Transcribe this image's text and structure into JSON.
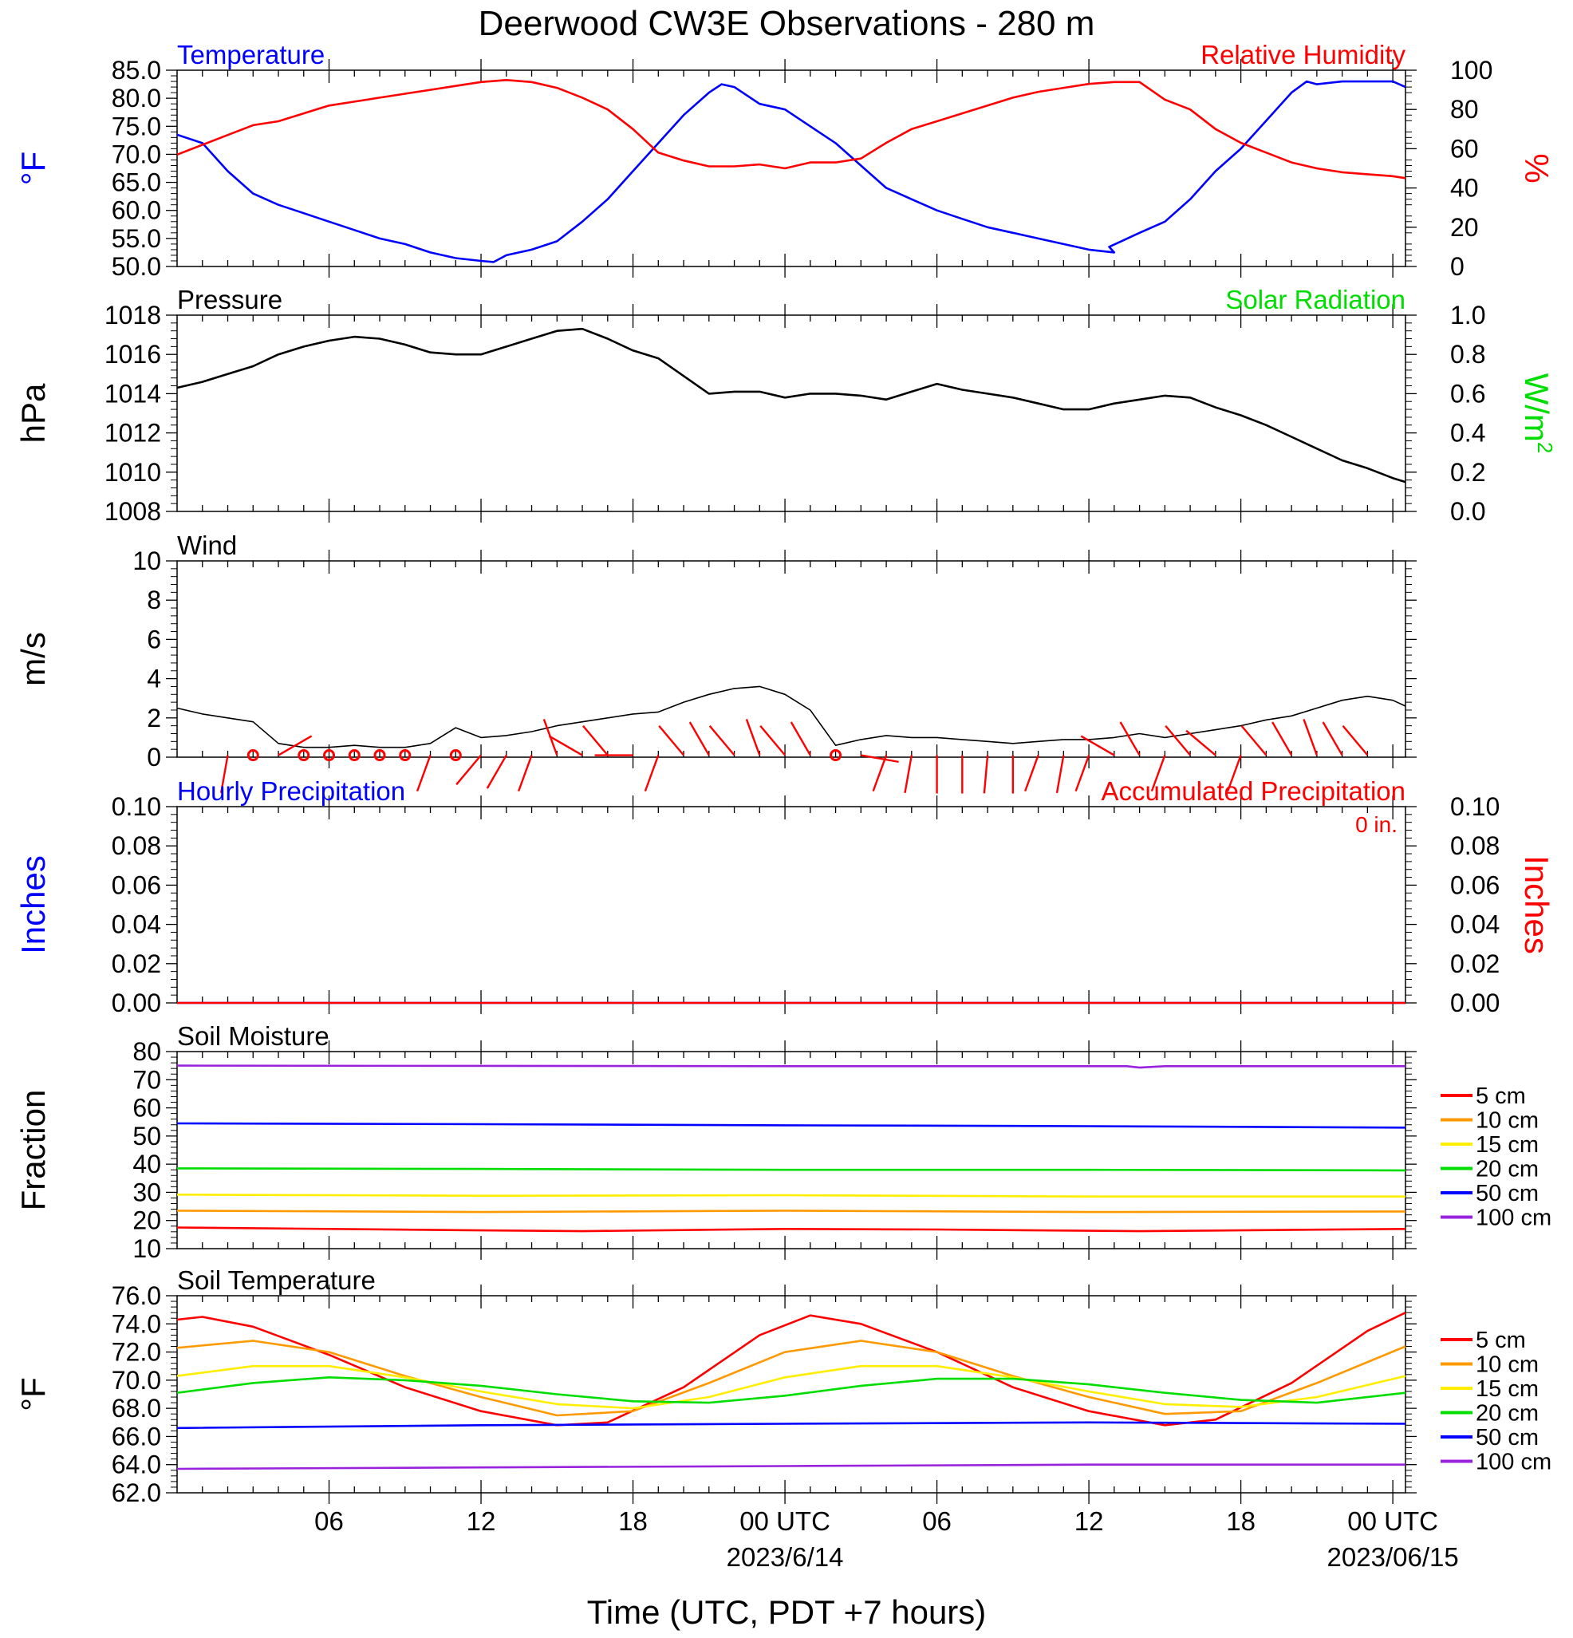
{
  "title": "Deerwood CW3E Observations - 280 m",
  "xlabel": "Time (UTC, PDT +7 hours)",
  "x_axis": {
    "range_hours": [
      0,
      48.5
    ],
    "ticks": [
      {
        "hour": 6,
        "label": "06",
        "sub": ""
      },
      {
        "hour": 12,
        "label": "12",
        "sub": ""
      },
      {
        "hour": 18,
        "label": "18",
        "sub": ""
      },
      {
        "hour": 24,
        "label": "00 UTC",
        "sub": "2023/6/14"
      },
      {
        "hour": 30,
        "label": "06",
        "sub": ""
      },
      {
        "hour": 36,
        "label": "12",
        "sub": ""
      },
      {
        "hour": 42,
        "label": "18",
        "sub": ""
      },
      {
        "hour": 48,
        "label": "00 UTC",
        "sub": "2023/06/15"
      }
    ]
  },
  "colors": {
    "blue": "#0000ff",
    "red": "#ff0000",
    "green": "#00dd00",
    "black": "#000000",
    "orange": "#ff9900",
    "yellow": "#ffee00",
    "purple": "#9922dd"
  },
  "chart_data": [
    {
      "id": "temp_rh",
      "type": "line",
      "left_title": "Temperature",
      "right_title": "Relative Humidity",
      "ylabel": "°F",
      "ylabel_right": "%",
      "ylim": [
        50,
        85
      ],
      "yticks": [
        "50.0",
        "55.0",
        "60.0",
        "65.0",
        "70.0",
        "75.0",
        "80.0",
        "85.0"
      ],
      "ylim_right": [
        0,
        100
      ],
      "yticks_right": [
        "0",
        "20",
        "40",
        "60",
        "80",
        "100"
      ],
      "series": [
        {
          "name": "Temperature",
          "color": "#0000ff",
          "axis": "left",
          "x": [
            0,
            1,
            2,
            3,
            4,
            5,
            6,
            7,
            8,
            9,
            10,
            11,
            12,
            12.5,
            13,
            14,
            15,
            16,
            17,
            18,
            19,
            20,
            21,
            21.5,
            22,
            23,
            24,
            25,
            26,
            27,
            28,
            29,
            30,
            31,
            32,
            33,
            34,
            35,
            36,
            37,
            36.8,
            38,
            39,
            40,
            41,
            42,
            43,
            44,
            44.6,
            45,
            46,
            47,
            48,
            48.5
          ],
          "y": [
            73.5,
            72,
            67,
            63,
            61,
            59.5,
            58,
            56.5,
            55,
            54,
            52.5,
            51.5,
            51,
            50.8,
            52,
            53,
            54.5,
            58,
            62,
            67,
            72,
            77,
            81,
            82.5,
            82,
            79,
            78,
            75,
            72,
            68,
            64,
            62,
            60,
            58.5,
            57,
            56,
            55,
            54,
            53,
            52.5,
            53.5,
            56,
            58,
            62,
            67,
            71,
            76,
            81,
            83,
            82.5,
            83,
            83,
            83,
            82
          ]
        },
        {
          "name": "Relative Humidity",
          "color": "#ff0000",
          "axis": "right",
          "x": [
            0,
            1,
            2,
            3,
            4,
            5,
            6,
            7,
            8,
            9,
            10,
            11,
            12,
            13,
            14,
            15,
            16,
            17,
            18,
            19,
            20,
            21,
            22,
            23,
            24,
            25,
            26,
            27,
            28,
            29,
            30,
            31,
            32,
            33,
            34,
            35,
            36,
            37,
            38,
            39,
            40,
            41,
            42,
            43,
            44,
            45,
            46,
            47,
            48,
            48.5
          ],
          "y": [
            57,
            62,
            67,
            72,
            74,
            78,
            82,
            84,
            86,
            88,
            90,
            92,
            94,
            95,
            94,
            91,
            86,
            80,
            70,
            58,
            54,
            51,
            51,
            52,
            50,
            53,
            53,
            55,
            63,
            70,
            74,
            78,
            82,
            86,
            89,
            91,
            93,
            94,
            94,
            85,
            80,
            70,
            63,
            58,
            53,
            50,
            48,
            47,
            46,
            45
          ]
        }
      ]
    },
    {
      "id": "pressure",
      "type": "line",
      "left_title": "Pressure",
      "right_title": "Solar Radiation",
      "ylabel": "hPa",
      "ylabel_right": "W/m",
      "ylabel_right_sup": "2",
      "ylim": [
        1008,
        1018
      ],
      "yticks": [
        "1008",
        "1010",
        "1012",
        "1014",
        "1016",
        "1018"
      ],
      "ylim_right": [
        0,
        1
      ],
      "yticks_right": [
        "0.0",
        "0.2",
        "0.4",
        "0.6",
        "0.8",
        "1.0"
      ],
      "series": [
        {
          "name": "Pressure",
          "color": "#000000",
          "axis": "left",
          "x": [
            0,
            1,
            2,
            3,
            4,
            5,
            6,
            7,
            8,
            9,
            10,
            11,
            12,
            13,
            14,
            15,
            16,
            17,
            18,
            19,
            20,
            21,
            22,
            23,
            24,
            25,
            26,
            27,
            28,
            29,
            30,
            31,
            32,
            33,
            34,
            35,
            36,
            37,
            38,
            39,
            40,
            41,
            42,
            43,
            44,
            45,
            46,
            47,
            48,
            48.5
          ],
          "y": [
            1014.3,
            1014.6,
            1015.0,
            1015.4,
            1016.0,
            1016.4,
            1016.7,
            1016.9,
            1016.8,
            1016.5,
            1016.1,
            1016.0,
            1016.0,
            1016.4,
            1016.8,
            1017.2,
            1017.3,
            1016.8,
            1016.2,
            1015.8,
            1014.9,
            1014.0,
            1014.1,
            1014.1,
            1013.8,
            1014.0,
            1014.0,
            1013.9,
            1013.7,
            1014.1,
            1014.5,
            1014.2,
            1014.0,
            1013.8,
            1013.5,
            1013.2,
            1013.2,
            1013.5,
            1013.7,
            1013.9,
            1013.8,
            1013.3,
            1012.9,
            1012.4,
            1011.8,
            1011.2,
            1010.6,
            1010.2,
            1009.7,
            1009.5
          ]
        }
      ]
    },
    {
      "id": "wind",
      "type": "line",
      "left_title": "Wind",
      "ylabel": "m/s",
      "ylim": [
        0,
        10
      ],
      "yticks": [
        "0",
        "2",
        "4",
        "6",
        "8",
        "10"
      ],
      "series": [
        {
          "name": "Wind",
          "color": "#000000",
          "axis": "left",
          "x": [
            0,
            1,
            2,
            3,
            4,
            5,
            6,
            7,
            8,
            9,
            10,
            11,
            12,
            13,
            14,
            15,
            16,
            17,
            18,
            19,
            20,
            21,
            22,
            23,
            24,
            25,
            26,
            27,
            28,
            29,
            30,
            31,
            32,
            33,
            34,
            35,
            36,
            37,
            38,
            39,
            40,
            41,
            42,
            43,
            44,
            45,
            46,
            47,
            48,
            48.5
          ],
          "y": [
            2.5,
            2.2,
            2.0,
            1.8,
            0.7,
            0.5,
            0.5,
            0.6,
            0.5,
            0.5,
            0.7,
            1.5,
            1.0,
            1.1,
            1.3,
            1.6,
            1.8,
            2.0,
            2.2,
            2.3,
            2.8,
            3.2,
            3.5,
            3.6,
            3.2,
            2.4,
            0.6,
            0.9,
            1.1,
            1.0,
            1.0,
            0.9,
            0.8,
            0.7,
            0.8,
            0.9,
            0.9,
            1.0,
            1.2,
            1.0,
            1.2,
            1.4,
            1.6,
            1.9,
            2.1,
            2.5,
            2.9,
            3.1,
            2.9,
            2.6
          ]
        }
      ],
      "calm_hours": [
        3,
        5,
        6,
        7,
        8,
        9,
        11,
        26
      ],
      "wind_barbs": [
        {
          "hour": 2,
          "dir": 190
        },
        {
          "hour": 4,
          "dir": 60
        },
        {
          "hour": 10,
          "dir": 200
        },
        {
          "hour": 12,
          "dir": 220
        },
        {
          "hour": 13,
          "dir": 210
        },
        {
          "hour": 14,
          "dir": 200
        },
        {
          "hour": 15,
          "dir": 340
        },
        {
          "hour": 16,
          "dir": 300
        },
        {
          "hour": 17,
          "dir": 320
        },
        {
          "hour": 18,
          "dir": 270
        },
        {
          "hour": 19,
          "dir": 200
        },
        {
          "hour": 20,
          "dir": 320
        },
        {
          "hour": 21,
          "dir": 330
        },
        {
          "hour": 22,
          "dir": 320
        },
        {
          "hour": 23,
          "dir": 340
        },
        {
          "hour": 24,
          "dir": 320
        },
        {
          "hour": 25,
          "dir": 330
        },
        {
          "hour": 27,
          "dir": 100
        },
        {
          "hour": 28,
          "dir": 200
        },
        {
          "hour": 29,
          "dir": 190
        },
        {
          "hour": 30,
          "dir": 180
        },
        {
          "hour": 31,
          "dir": 180
        },
        {
          "hour": 32,
          "dir": 185
        },
        {
          "hour": 33,
          "dir": 180
        },
        {
          "hour": 34,
          "dir": 200
        },
        {
          "hour": 35,
          "dir": 190
        },
        {
          "hour": 36,
          "dir": 200
        },
        {
          "hour": 37,
          "dir": 300
        },
        {
          "hour": 38,
          "dir": 330
        },
        {
          "hour": 39,
          "dir": 200
        },
        {
          "hour": 40,
          "dir": 320
        },
        {
          "hour": 41,
          "dir": 310
        },
        {
          "hour": 42,
          "dir": 200
        },
        {
          "hour": 43,
          "dir": 320
        },
        {
          "hour": 44,
          "dir": 330
        },
        {
          "hour": 45,
          "dir": 340
        },
        {
          "hour": 46,
          "dir": 330
        },
        {
          "hour": 47,
          "dir": 320
        }
      ]
    },
    {
      "id": "precip",
      "type": "line",
      "left_title": "Hourly Precipitation",
      "right_title": "Accumulated Precipitation",
      "annotation": "0 in.",
      "ylabel": "Inches",
      "ylabel_right": "Inches",
      "ylim": [
        0,
        0.1
      ],
      "yticks": [
        "0.00",
        "0.02",
        "0.04",
        "0.06",
        "0.08",
        "0.10"
      ],
      "ylim_right": [
        0,
        0.1
      ],
      "yticks_right": [
        "0.00",
        "0.02",
        "0.04",
        "0.06",
        "0.08",
        "0.10"
      ],
      "series": [
        {
          "name": "Hourly Precipitation",
          "color": "#0000ff",
          "axis": "left",
          "x": [
            0,
            48.5
          ],
          "y": [
            0,
            0
          ]
        },
        {
          "name": "Accumulated Precipitation",
          "color": "#ff0000",
          "axis": "right",
          "x": [
            0,
            48.5
          ],
          "y": [
            0,
            0
          ]
        }
      ]
    },
    {
      "id": "soil_moisture",
      "type": "line",
      "left_title": "Soil Moisture",
      "ylabel": "Fraction",
      "ylim": [
        10,
        80
      ],
      "yticks": [
        "10",
        "20",
        "30",
        "40",
        "50",
        "60",
        "70",
        "80"
      ],
      "series": [
        {
          "name": "5 cm",
          "color": "#ff0000",
          "x": [
            0,
            12,
            16,
            24,
            30,
            38,
            48.5
          ],
          "y": [
            17.5,
            16.5,
            16.2,
            17.0,
            16.8,
            16.2,
            17.0
          ]
        },
        {
          "name": "10 cm",
          "color": "#ff9900",
          "x": [
            0,
            12,
            24,
            36,
            48.5
          ],
          "y": [
            23.5,
            23.0,
            23.5,
            23.0,
            23.2
          ]
        },
        {
          "name": "15 cm",
          "color": "#ffee00",
          "x": [
            0,
            12,
            24,
            36,
            48.5
          ],
          "y": [
            29.2,
            28.8,
            29.0,
            28.5,
            28.5
          ]
        },
        {
          "name": "20 cm",
          "color": "#00dd00",
          "x": [
            0,
            12,
            24,
            36,
            48.5
          ],
          "y": [
            38.5,
            38.3,
            38.0,
            38.0,
            37.8
          ]
        },
        {
          "name": "50 cm",
          "color": "#0000ff",
          "x": [
            0,
            12,
            24,
            36,
            48.5
          ],
          "y": [
            54.5,
            54.2,
            53.8,
            53.5,
            53.0
          ]
        },
        {
          "name": "100 cm",
          "color": "#9922dd",
          "x": [
            0,
            24,
            37.5,
            38.0,
            39.0,
            48.5
          ],
          "y": [
            75.0,
            74.8,
            74.8,
            74.3,
            74.8,
            74.8
          ]
        }
      ]
    },
    {
      "id": "soil_temperature",
      "type": "line",
      "left_title": "Soil Temperature",
      "ylabel": "°F",
      "ylim": [
        62,
        76
      ],
      "yticks": [
        "62.0",
        "64.0",
        "66.0",
        "68.0",
        "70.0",
        "72.0",
        "74.0",
        "76.0"
      ],
      "series": [
        {
          "name": "5 cm",
          "color": "#ff0000",
          "x": [
            0,
            1,
            3,
            6,
            9,
            12,
            15,
            17,
            20,
            23,
            25,
            27,
            30,
            33,
            36,
            39,
            41,
            44,
            47,
            48.5
          ],
          "y": [
            74.3,
            74.5,
            73.8,
            71.8,
            69.5,
            67.8,
            66.8,
            67.0,
            69.5,
            73.2,
            74.6,
            74.0,
            72.0,
            69.5,
            67.8,
            66.8,
            67.2,
            69.8,
            73.5,
            74.8
          ]
        },
        {
          "name": "10 cm",
          "color": "#ff9900",
          "x": [
            0,
            3,
            6,
            9,
            12,
            15,
            18,
            21,
            24,
            27,
            30,
            33,
            36,
            39,
            42,
            45,
            48.5
          ],
          "y": [
            72.3,
            72.8,
            72.0,
            70.3,
            68.8,
            67.5,
            67.8,
            69.8,
            72.0,
            72.8,
            72.0,
            70.3,
            68.8,
            67.6,
            67.8,
            69.8,
            72.4
          ]
        },
        {
          "name": "15 cm",
          "color": "#ffee00",
          "x": [
            0,
            3,
            6,
            9,
            12,
            15,
            18,
            21,
            24,
            27,
            30,
            33,
            36,
            39,
            42,
            45,
            48.5
          ],
          "y": [
            70.3,
            71.0,
            71.0,
            70.2,
            69.2,
            68.3,
            68.0,
            68.8,
            70.2,
            71.0,
            71.0,
            70.2,
            69.2,
            68.3,
            68.1,
            68.8,
            70.3
          ]
        },
        {
          "name": "20 cm",
          "color": "#00dd00",
          "x": [
            0,
            3,
            6,
            9,
            12,
            15,
            18,
            21,
            24,
            27,
            30,
            33,
            36,
            39,
            42,
            45,
            48.5
          ],
          "y": [
            69.1,
            69.8,
            70.2,
            70.0,
            69.6,
            69.0,
            68.5,
            68.4,
            68.9,
            69.6,
            70.1,
            70.1,
            69.7,
            69.1,
            68.6,
            68.4,
            69.1
          ]
        },
        {
          "name": "50 cm",
          "color": "#0000ff",
          "x": [
            0,
            12,
            24,
            36,
            48.5
          ],
          "y": [
            66.6,
            66.8,
            66.9,
            67.0,
            66.9
          ]
        },
        {
          "name": "100 cm",
          "color": "#9922dd",
          "x": [
            0,
            12,
            24,
            36,
            48.5
          ],
          "y": [
            63.7,
            63.8,
            63.9,
            64.0,
            64.0
          ]
        }
      ]
    }
  ]
}
